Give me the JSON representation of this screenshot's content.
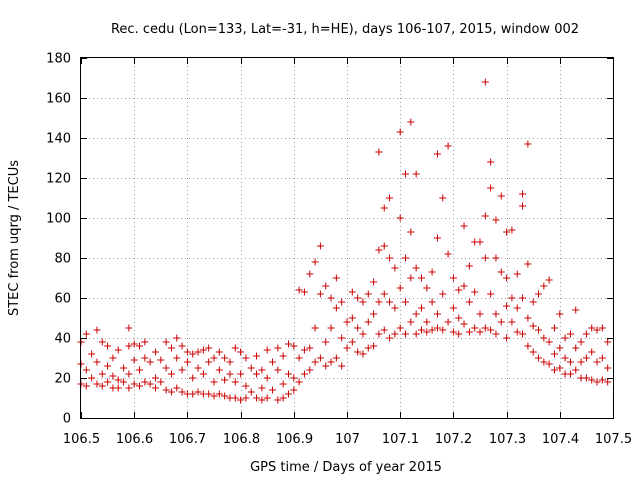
{
  "chart_data": {
    "type": "scatter",
    "title": "Rec. cedu (Lon=133, Lat=-31, h=HE), days 106-107, 2015, window 002",
    "xlabel": "GPS time / Days of year 2015",
    "ylabel": "STEC from uqrg / TECUs",
    "xlim": [
      106.5,
      107.5
    ],
    "ylim": [
      0,
      180
    ],
    "x_ticks": [
      "106.5",
      "106.6",
      "106.7",
      "106.8",
      "106.9",
      "107",
      "107.1",
      "107.2",
      "107.3",
      "107.4",
      "107.5"
    ],
    "y_ticks": [
      "0",
      "20",
      "40",
      "60",
      "80",
      "100",
      "120",
      "140",
      "160",
      "180"
    ],
    "grid": true,
    "marker": "plus",
    "color": "#cc0000",
    "points": [
      [
        106.5,
        38
      ],
      [
        106.5,
        27
      ],
      [
        106.5,
        17
      ],
      [
        106.51,
        42
      ],
      [
        106.51,
        24
      ],
      [
        106.51,
        16
      ],
      [
        106.52,
        32
      ],
      [
        106.52,
        20
      ],
      [
        106.53,
        44
      ],
      [
        106.53,
        28
      ],
      [
        106.53,
        17
      ],
      [
        106.54,
        38
      ],
      [
        106.54,
        22
      ],
      [
        106.54,
        16
      ],
      [
        106.55,
        36
      ],
      [
        106.55,
        26
      ],
      [
        106.55,
        18
      ],
      [
        106.56,
        30
      ],
      [
        106.56,
        21
      ],
      [
        106.56,
        15
      ],
      [
        106.57,
        34
      ],
      [
        106.57,
        19
      ],
      [
        106.57,
        15
      ],
      [
        106.58,
        25
      ],
      [
        106.58,
        18
      ],
      [
        106.59,
        45
      ],
      [
        106.59,
        36
      ],
      [
        106.59,
        22
      ],
      [
        106.59,
        15
      ],
      [
        106.6,
        37
      ],
      [
        106.6,
        29
      ],
      [
        106.6,
        17
      ],
      [
        106.61,
        36
      ],
      [
        106.61,
        24
      ],
      [
        106.61,
        16
      ],
      [
        106.62,
        38
      ],
      [
        106.62,
        30
      ],
      [
        106.62,
        18
      ],
      [
        106.63,
        28
      ],
      [
        106.63,
        17
      ],
      [
        106.64,
        33
      ],
      [
        106.64,
        20
      ],
      [
        106.64,
        15
      ],
      [
        106.65,
        29
      ],
      [
        106.65,
        18
      ],
      [
        106.66,
        38
      ],
      [
        106.66,
        25
      ],
      [
        106.66,
        14
      ],
      [
        106.67,
        35
      ],
      [
        106.67,
        22
      ],
      [
        106.67,
        13
      ],
      [
        106.68,
        40
      ],
      [
        106.68,
        30
      ],
      [
        106.68,
        15
      ],
      [
        106.69,
        36
      ],
      [
        106.69,
        24
      ],
      [
        106.69,
        13
      ],
      [
        106.7,
        33
      ],
      [
        106.7,
        28
      ],
      [
        106.7,
        12
      ],
      [
        106.71,
        32
      ],
      [
        106.71,
        20
      ],
      [
        106.71,
        12
      ],
      [
        106.72,
        33
      ],
      [
        106.72,
        25
      ],
      [
        106.72,
        13
      ],
      [
        106.73,
        34
      ],
      [
        106.73,
        22
      ],
      [
        106.73,
        12
      ],
      [
        106.74,
        35
      ],
      [
        106.74,
        28
      ],
      [
        106.74,
        12
      ],
      [
        106.75,
        30
      ],
      [
        106.75,
        18
      ],
      [
        106.75,
        11
      ],
      [
        106.76,
        33
      ],
      [
        106.76,
        24
      ],
      [
        106.76,
        12
      ],
      [
        106.77,
        30
      ],
      [
        106.77,
        19
      ],
      [
        106.77,
        11
      ],
      [
        106.78,
        28
      ],
      [
        106.78,
        22
      ],
      [
        106.78,
        10
      ],
      [
        106.79,
        35
      ],
      [
        106.79,
        18
      ],
      [
        106.79,
        10
      ],
      [
        106.8,
        33
      ],
      [
        106.8,
        22
      ],
      [
        106.8,
        9
      ],
      [
        106.81,
        30
      ],
      [
        106.81,
        16
      ],
      [
        106.81,
        10
      ],
      [
        106.82,
        25
      ],
      [
        106.82,
        13
      ],
      [
        106.83,
        31
      ],
      [
        106.83,
        22
      ],
      [
        106.83,
        10
      ],
      [
        106.84,
        24
      ],
      [
        106.84,
        15
      ],
      [
        106.84,
        9
      ],
      [
        106.85,
        34
      ],
      [
        106.85,
        20
      ],
      [
        106.85,
        10
      ],
      [
        106.86,
        28
      ],
      [
        106.86,
        14
      ],
      [
        106.87,
        35
      ],
      [
        106.87,
        24
      ],
      [
        106.87,
        9
      ],
      [
        106.88,
        31
      ],
      [
        106.88,
        17
      ],
      [
        106.88,
        10
      ],
      [
        106.89,
        37
      ],
      [
        106.89,
        22
      ],
      [
        106.89,
        12
      ],
      [
        106.9,
        36
      ],
      [
        106.9,
        20
      ],
      [
        106.9,
        14
      ],
      [
        106.91,
        64
      ],
      [
        106.91,
        30
      ],
      [
        106.91,
        18
      ],
      [
        106.92,
        63
      ],
      [
        106.92,
        34
      ],
      [
        106.92,
        22
      ],
      [
        106.93,
        72
      ],
      [
        106.93,
        35
      ],
      [
        106.93,
        24
      ],
      [
        106.94,
        78
      ],
      [
        106.94,
        45
      ],
      [
        106.94,
        28
      ],
      [
        106.95,
        86
      ],
      [
        106.95,
        62
      ],
      [
        106.95,
        30
      ],
      [
        106.96,
        66
      ],
      [
        106.96,
        38
      ],
      [
        106.96,
        26
      ],
      [
        106.97,
        60
      ],
      [
        106.97,
        45
      ],
      [
        106.97,
        28
      ],
      [
        106.98,
        70
      ],
      [
        106.98,
        55
      ],
      [
        106.98,
        30
      ],
      [
        106.99,
        58
      ],
      [
        106.99,
        40
      ],
      [
        106.99,
        26
      ],
      [
        107.0,
        48
      ],
      [
        107.0,
        35
      ],
      [
        107.01,
        63
      ],
      [
        107.01,
        50
      ],
      [
        107.01,
        38
      ],
      [
        107.02,
        60
      ],
      [
        107.02,
        45
      ],
      [
        107.02,
        33
      ],
      [
        107.03,
        58
      ],
      [
        107.03,
        42
      ],
      [
        107.03,
        32
      ],
      [
        107.04,
        62
      ],
      [
        107.04,
        48
      ],
      [
        107.04,
        35
      ],
      [
        107.05,
        68
      ],
      [
        107.05,
        52
      ],
      [
        107.05,
        36
      ],
      [
        107.06,
        133
      ],
      [
        107.06,
        84
      ],
      [
        107.06,
        58
      ],
      [
        107.06,
        42
      ],
      [
        107.07,
        105
      ],
      [
        107.07,
        86
      ],
      [
        107.07,
        62
      ],
      [
        107.07,
        44
      ],
      [
        107.08,
        110
      ],
      [
        107.08,
        80
      ],
      [
        107.08,
        58
      ],
      [
        107.08,
        40
      ],
      [
        107.09,
        75
      ],
      [
        107.09,
        55
      ],
      [
        107.09,
        42
      ],
      [
        107.1,
        143
      ],
      [
        107.1,
        100
      ],
      [
        107.1,
        65
      ],
      [
        107.1,
        45
      ],
      [
        107.11,
        122
      ],
      [
        107.11,
        80
      ],
      [
        107.11,
        58
      ],
      [
        107.11,
        42
      ],
      [
        107.12,
        148
      ],
      [
        107.12,
        93
      ],
      [
        107.12,
        70
      ],
      [
        107.12,
        48
      ],
      [
        107.13,
        122
      ],
      [
        107.13,
        75
      ],
      [
        107.13,
        52
      ],
      [
        107.13,
        42
      ],
      [
        107.14,
        70
      ],
      [
        107.14,
        55
      ],
      [
        107.14,
        44
      ],
      [
        107.15,
        65
      ],
      [
        107.15,
        48
      ],
      [
        107.15,
        43
      ],
      [
        107.16,
        73
      ],
      [
        107.16,
        58
      ],
      [
        107.16,
        44
      ],
      [
        107.17,
        132
      ],
      [
        107.17,
        90
      ],
      [
        107.17,
        52
      ],
      [
        107.17,
        45
      ],
      [
        107.18,
        110
      ],
      [
        107.18,
        62
      ],
      [
        107.18,
        44
      ],
      [
        107.19,
        136
      ],
      [
        107.19,
        82
      ],
      [
        107.19,
        48
      ],
      [
        107.2,
        70
      ],
      [
        107.2,
        55
      ],
      [
        107.2,
        43
      ],
      [
        107.21,
        64
      ],
      [
        107.21,
        50
      ],
      [
        107.21,
        42
      ],
      [
        107.22,
        96
      ],
      [
        107.22,
        66
      ],
      [
        107.22,
        47
      ],
      [
        107.23,
        76
      ],
      [
        107.23,
        58
      ],
      [
        107.23,
        43
      ],
      [
        107.24,
        88
      ],
      [
        107.24,
        63
      ],
      [
        107.24,
        45
      ],
      [
        107.25,
        88
      ],
      [
        107.25,
        52
      ],
      [
        107.25,
        43
      ],
      [
        107.26,
        168
      ],
      [
        107.26,
        101
      ],
      [
        107.26,
        80
      ],
      [
        107.26,
        45
      ],
      [
        107.27,
        128
      ],
      [
        107.27,
        115
      ],
      [
        107.27,
        62
      ],
      [
        107.27,
        44
      ],
      [
        107.28,
        99
      ],
      [
        107.28,
        80
      ],
      [
        107.28,
        52
      ],
      [
        107.28,
        42
      ],
      [
        107.29,
        111
      ],
      [
        107.29,
        73
      ],
      [
        107.29,
        48
      ],
      [
        107.3,
        93
      ],
      [
        107.3,
        70
      ],
      [
        107.3,
        56
      ],
      [
        107.3,
        40
      ],
      [
        107.31,
        94
      ],
      [
        107.31,
        60
      ],
      [
        107.31,
        48
      ],
      [
        107.32,
        72
      ],
      [
        107.32,
        55
      ],
      [
        107.32,
        43
      ],
      [
        107.33,
        112
      ],
      [
        107.33,
        106
      ],
      [
        107.33,
        60
      ],
      [
        107.33,
        42
      ],
      [
        107.34,
        137
      ],
      [
        107.34,
        77
      ],
      [
        107.34,
        50
      ],
      [
        107.34,
        36
      ],
      [
        107.35,
        58
      ],
      [
        107.35,
        46
      ],
      [
        107.35,
        33
      ],
      [
        107.36,
        62
      ],
      [
        107.36,
        44
      ],
      [
        107.36,
        30
      ],
      [
        107.37,
        66
      ],
      [
        107.37,
        40
      ],
      [
        107.37,
        28
      ],
      [
        107.38,
        69
      ],
      [
        107.38,
        38
      ],
      [
        107.38,
        27
      ],
      [
        107.39,
        45
      ],
      [
        107.39,
        32
      ],
      [
        107.39,
        24
      ],
      [
        107.4,
        52
      ],
      [
        107.4,
        35
      ],
      [
        107.4,
        25
      ],
      [
        107.41,
        40
      ],
      [
        107.41,
        30
      ],
      [
        107.41,
        22
      ],
      [
        107.42,
        42
      ],
      [
        107.42,
        28
      ],
      [
        107.42,
        22
      ],
      [
        107.43,
        54
      ],
      [
        107.43,
        35
      ],
      [
        107.43,
        24
      ],
      [
        107.44,
        38
      ],
      [
        107.44,
        28
      ],
      [
        107.44,
        20
      ],
      [
        107.45,
        42
      ],
      [
        107.45,
        30
      ],
      [
        107.45,
        20
      ],
      [
        107.46,
        45
      ],
      [
        107.46,
        33
      ],
      [
        107.46,
        19
      ],
      [
        107.47,
        44
      ],
      [
        107.47,
        28
      ],
      [
        107.47,
        18
      ],
      [
        107.48,
        45
      ],
      [
        107.48,
        30
      ],
      [
        107.48,
        19
      ],
      [
        107.49,
        38
      ],
      [
        107.49,
        25
      ],
      [
        107.49,
        18
      ]
    ]
  }
}
